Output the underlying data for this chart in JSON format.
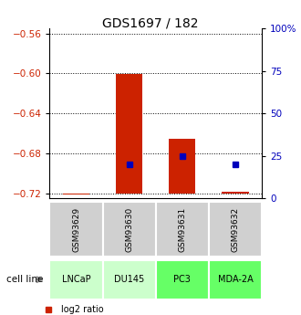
{
  "title": "GDS1697 / 182",
  "samples": [
    "GSM93629",
    "GSM93630",
    "GSM93631",
    "GSM93632"
  ],
  "cell_lines": [
    "LNCaP",
    "DU145",
    "PC3",
    "MDA-2A"
  ],
  "cell_line_colors": [
    "#ccffcc",
    "#ccffcc",
    "#66ff66",
    "#66ff66"
  ],
  "log2_ratios": [
    -0.721,
    -0.601,
    -0.665,
    -0.718
  ],
  "baseline": -0.72,
  "percentile_ranks": [
    null,
    20.0,
    25.0,
    20.0
  ],
  "ylim_left": [
    -0.725,
    -0.555
  ],
  "yticks_left": [
    -0.72,
    -0.68,
    -0.64,
    -0.6,
    -0.56
  ],
  "ylim_right": [
    0,
    100
  ],
  "yticks_right": [
    0,
    25,
    50,
    75,
    100
  ],
  "yticklabels_right": [
    "0",
    "25",
    "50",
    "75",
    "100%"
  ],
  "bar_color": "#cc2200",
  "marker_color": "#0000bb",
  "left_tick_color": "#cc2200",
  "right_tick_color": "#0000bb",
  "bar_width": 0.5
}
